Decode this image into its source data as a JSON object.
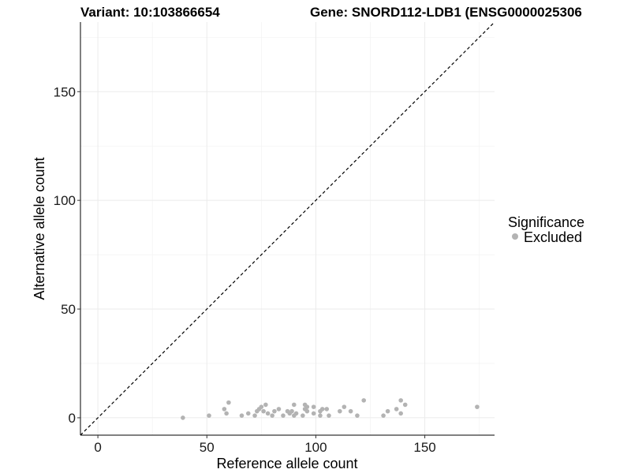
{
  "titles": {
    "variant": "Variant: 10:103866654",
    "gene": "Gene: SNORD112-LDB1 (ENSG0000025306"
  },
  "legend": {
    "title": "Significance",
    "items": [
      {
        "label": "Excluded",
        "color": "#b3b3b3"
      }
    ]
  },
  "chart_data": {
    "type": "scatter",
    "xlabel": "Reference allele count",
    "ylabel": "Alternative allele count",
    "xlim": [
      -8,
      182
    ],
    "ylim": [
      -8,
      182
    ],
    "xticks": [
      0,
      50,
      100,
      150
    ],
    "yticks": [
      0,
      50,
      100,
      150
    ],
    "grid": true,
    "reference_line": {
      "type": "diagonal",
      "slope": 1,
      "intercept": 0,
      "style": "dashed"
    },
    "series": [
      {
        "name": "Excluded",
        "color": "#b3b3b3",
        "points": [
          [
            39,
            0
          ],
          [
            51,
            1
          ],
          [
            58,
            4
          ],
          [
            59,
            2
          ],
          [
            60,
            7
          ],
          [
            66,
            1
          ],
          [
            69,
            2
          ],
          [
            72,
            1
          ],
          [
            73,
            3
          ],
          [
            74,
            4
          ],
          [
            75,
            5
          ],
          [
            76,
            3
          ],
          [
            77,
            6
          ],
          [
            78,
            2
          ],
          [
            80,
            1
          ],
          [
            81,
            3
          ],
          [
            83,
            4
          ],
          [
            85,
            1
          ],
          [
            87,
            3
          ],
          [
            88,
            2
          ],
          [
            89,
            3
          ],
          [
            90,
            6
          ],
          [
            90,
            1
          ],
          [
            91,
            2
          ],
          [
            94,
            1
          ],
          [
            95,
            6
          ],
          [
            95,
            4
          ],
          [
            96,
            5
          ],
          [
            96,
            3
          ],
          [
            99,
            2
          ],
          [
            99,
            5
          ],
          [
            102,
            3
          ],
          [
            102,
            1
          ],
          [
            103,
            4
          ],
          [
            105,
            4
          ],
          [
            106,
            1
          ],
          [
            111,
            3
          ],
          [
            113,
            5
          ],
          [
            116,
            3
          ],
          [
            119,
            1
          ],
          [
            122,
            8
          ],
          [
            131,
            1
          ],
          [
            133,
            3
          ],
          [
            137,
            4
          ],
          [
            139,
            2
          ],
          [
            139,
            8
          ],
          [
            141,
            6
          ],
          [
            174,
            5
          ]
        ]
      }
    ]
  }
}
